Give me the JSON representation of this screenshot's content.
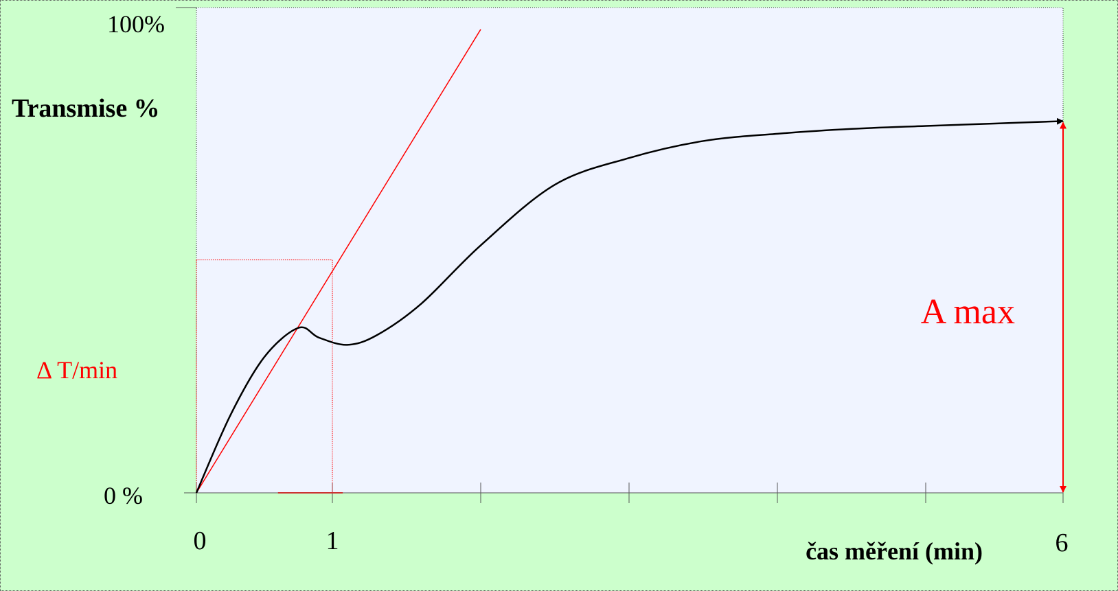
{
  "chart_data": {
    "type": "line",
    "ylabel": "Transmise %",
    "xlabel": "čas měření (min)",
    "y_tick_labels": [
      "100%",
      "0 %"
    ],
    "x_tick_labels": [
      "0",
      "1",
      "6"
    ],
    "x_ticks": [
      0,
      1,
      2,
      3,
      4,
      5,
      6
    ],
    "xlim": [
      0,
      6
    ],
    "ylim": [
      0,
      100
    ],
    "series": [
      {
        "color": "#000000",
        "x": [
          0,
          0.25,
          0.5,
          0.75,
          0.9,
          1.1,
          1.3,
          1.6,
          2.0,
          2.5,
          3.0,
          3.5,
          4.0,
          4.5,
          5.0,
          5.5,
          6.0
        ],
        "y": [
          0,
          16,
          28,
          34,
          32,
          30.5,
          32.5,
          39,
          51,
          63.5,
          69,
          72.5,
          74,
          75,
          75.6,
          76.1,
          76.6
        ]
      }
    ],
    "tangent_line": {
      "color": "#ff0000",
      "x": [
        0,
        2
      ],
      "y": [
        0,
        95.5
      ]
    },
    "annotations": [
      {
        "text": "Δ T/min",
        "color": "#ff0000"
      },
      {
        "text": "A max",
        "color": "#ff0000"
      }
    ],
    "guide_lines": {
      "color": "#ff0000",
      "x": 1,
      "y": 48
    },
    "colors": {
      "plot_area": "#f0f4ff",
      "background": "#ccffcc",
      "curve": "#000000",
      "accent": "#ff0000"
    },
    "grid": false
  }
}
